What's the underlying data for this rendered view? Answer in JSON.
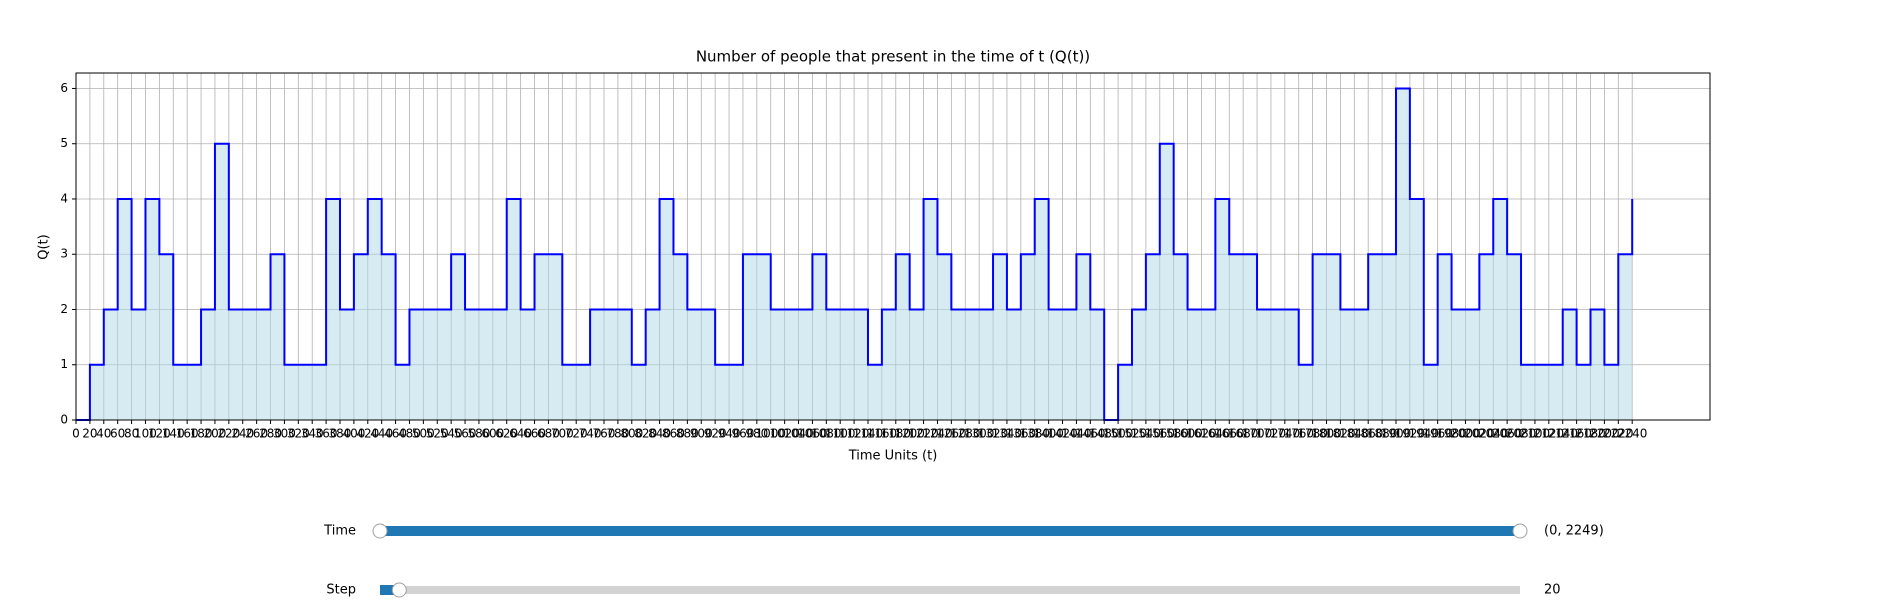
{
  "chart_data": {
    "type": "line",
    "step": "post",
    "fill": "#add8e6",
    "fill_opacity": 0.5,
    "color": "#0000ff",
    "title": "Number of people that present in the time of t (Q(t))",
    "x_label": "Time Units (t)",
    "y_label": "Q(t)",
    "grid": true,
    "x": [
      0,
      20,
      40,
      60,
      80,
      100,
      120,
      140,
      160,
      180,
      200,
      220,
      240,
      260,
      280,
      300,
      320,
      340,
      360,
      380,
      400,
      420,
      440,
      460,
      480,
      500,
      520,
      540,
      560,
      580,
      600,
      620,
      640,
      660,
      680,
      700,
      720,
      740,
      760,
      780,
      800,
      820,
      840,
      860,
      880,
      900,
      920,
      940,
      960,
      980,
      1000,
      1020,
      1040,
      1060,
      1080,
      1100,
      1120,
      1140,
      1160,
      1180,
      1200,
      1220,
      1240,
      1260,
      1280,
      1300,
      1320,
      1340,
      1360,
      1380,
      1400,
      1420,
      1440,
      1460,
      1480,
      1500,
      1520,
      1540,
      1560,
      1580,
      1600,
      1620,
      1640,
      1660,
      1680,
      1700,
      1720,
      1740,
      1760,
      1780,
      1800,
      1820,
      1840,
      1860,
      1880,
      1900,
      1920,
      1940,
      1960,
      1980,
      2000,
      2020,
      2040,
      2060,
      2080,
      2100,
      2120,
      2140,
      2160,
      2180,
      2200,
      2220,
      2240
    ],
    "series": [
      {
        "name": "Q(t)",
        "values": [
          0,
          1,
          2,
          4,
          2,
          4,
          3,
          1,
          1,
          2,
          5,
          2,
          2,
          2,
          3,
          1,
          1,
          1,
          4,
          2,
          3,
          4,
          3,
          1,
          2,
          2,
          2,
          3,
          2,
          2,
          2,
          4,
          2,
          3,
          3,
          1,
          1,
          2,
          2,
          2,
          1,
          2,
          4,
          3,
          2,
          2,
          1,
          1,
          3,
          3,
          2,
          2,
          2,
          3,
          2,
          2,
          2,
          1,
          2,
          3,
          2,
          4,
          3,
          2,
          2,
          2,
          3,
          2,
          3,
          4,
          2,
          2,
          3,
          2,
          0,
          1,
          2,
          3,
          5,
          3,
          2,
          2,
          4,
          3,
          3,
          2,
          2,
          2,
          1,
          3,
          3,
          2,
          2,
          3,
          3,
          6,
          4,
          1,
          3,
          2,
          2,
          3,
          4,
          3,
          1,
          1,
          1,
          2,
          1,
          2,
          1,
          3,
          4
        ]
      }
    ],
    "xlim": [
      0,
      2352
    ],
    "ylim": [
      0,
      6.28
    ],
    "xticks": [
      0,
      20,
      40,
      60,
      80,
      100,
      120,
      140,
      160,
      180,
      200,
      220,
      240,
      260,
      280,
      300,
      320,
      340,
      360,
      380,
      400,
      420,
      440,
      460,
      480,
      500,
      520,
      540,
      560,
      580,
      600,
      620,
      640,
      660,
      680,
      700,
      720,
      740,
      760,
      780,
      800,
      820,
      840,
      860,
      880,
      900,
      920,
      940,
      960,
      980,
      1000,
      1020,
      1040,
      1060,
      1080,
      1100,
      1120,
      1140,
      1160,
      1180,
      1200,
      1220,
      1240,
      1260,
      1280,
      1300,
      1320,
      1340,
      1360,
      1380,
      1400,
      1420,
      1440,
      1460,
      1480,
      1500,
      1520,
      1540,
      1560,
      1580,
      1600,
      1620,
      1640,
      1660,
      1680,
      1700,
      1720,
      1740,
      1760,
      1780,
      1800,
      1820,
      1840,
      1860,
      1880,
      1900,
      1920,
      1940,
      1960,
      1980,
      2000,
      2020,
      2040,
      2060,
      2080,
      2100,
      2120,
      2140,
      2160,
      2180,
      2200,
      2220,
      2240
    ],
    "yticks": [
      0,
      1,
      2,
      3,
      4,
      5,
      6
    ]
  },
  "sliders": [
    {
      "label": "Time",
      "values": [
        0,
        2249
      ],
      "value_label": "(0, 2249)",
      "min": 0,
      "max": 2249
    },
    {
      "label": "Step",
      "value": 20,
      "min": 1,
      "max": 1125
    }
  ]
}
